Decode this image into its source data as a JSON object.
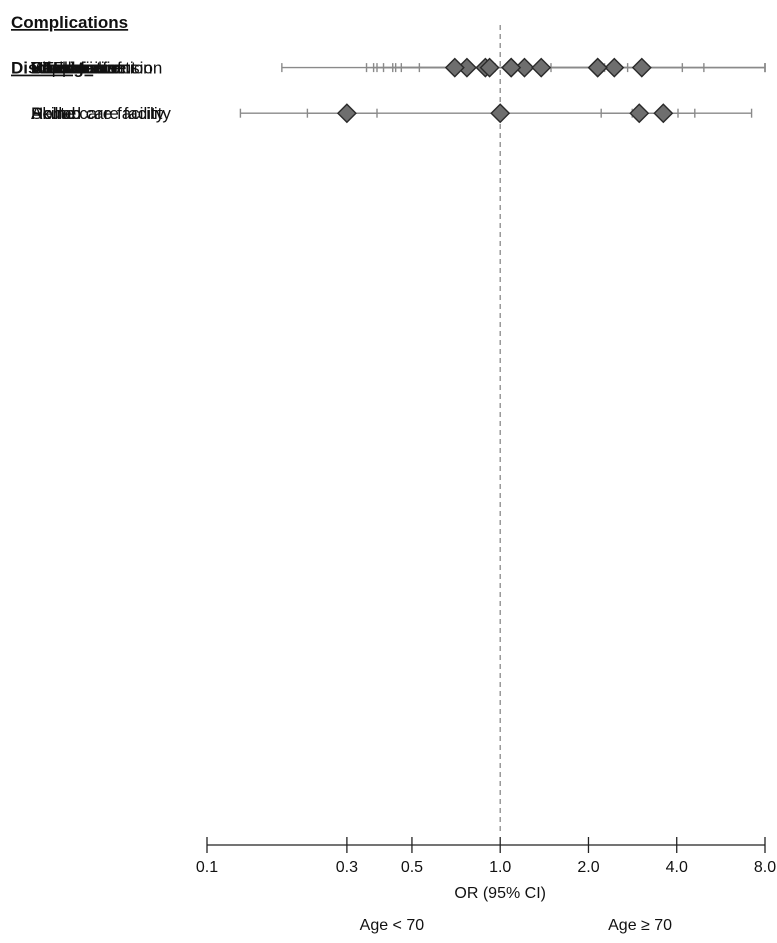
{
  "chart_data": {
    "type": "forest",
    "xscale": "log",
    "xlabel": "OR (95% CI)",
    "xlim": [
      0.1,
      8.0
    ],
    "reference_line": 1.0,
    "ticks": [
      {
        "value": 0.1,
        "label": "0.1"
      },
      {
        "value": 0.3,
        "label": "0.3"
      },
      {
        "value": 0.5,
        "label": "0.5"
      },
      {
        "value": 1.0,
        "label": "1.0"
      },
      {
        "value": 2.0,
        "label": "2.0"
      },
      {
        "value": 4.0,
        "label": "4.0"
      },
      {
        "value": 8.0,
        "label": "8.0"
      }
    ],
    "left_direction_label": "Age < 70",
    "right_direction_label": "Age ≥ 70",
    "marker_color": "#6e6e6e",
    "sections": [
      {
        "title": "Complications",
        "rows": [
          {
            "label": "Wound infection",
            "or": 0.77,
            "lo": 0.44,
            "hi": 1.38
          },
          {
            "label": "Pneumonia",
            "or": 1.09,
            "lo": 0.46,
            "hi": 2.72
          },
          {
            "label": "VTE",
            "or": 0.7,
            "lo": 0.35,
            "hi": 1.49
          },
          {
            "label": "Intubation",
            "or": 1.21,
            "lo": 0.4,
            "hi": 4.18
          },
          {
            "label": "Renal failure",
            "or": 3.04,
            "lo": 0.37,
            "hi": 8.0
          },
          {
            "label": "UTI",
            "or": 2.45,
            "lo": 1.2,
            "hi": 4.95
          },
          {
            "label": "Cardiac event",
            "or": 2.15,
            "lo": 0.43,
            "hi": 8.0
          },
          {
            "label": "Blood transfusion",
            "or": 1.09,
            "lo": 0.89,
            "hi": 1.33
          },
          {
            "label": "Stroke",
            "or": 2.15,
            "lo": 0.18,
            "hi": 8.0
          },
          {
            "label": "Sepsis",
            "or": 0.89,
            "lo": 0.38,
            "hi": 2.45
          },
          {
            "label": "Reoperation",
            "or": 0.92,
            "lo": 0.53,
            "hi": 1.43
          },
          {
            "label": "Readmission",
            "or": 1.38,
            "lo": 0.96,
            "hi": 2.27
          }
        ]
      },
      {
        "title": "Discharge",
        "rows": [
          {
            "label": "Home",
            "or": 0.3,
            "lo": 0.22,
            "hi": 0.38
          },
          {
            "label": "Rehab",
            "or": 2.98,
            "lo": 2.21,
            "hi": 4.04
          },
          {
            "label": "Acute care facility",
            "or": 1.0,
            "lo": 0.13,
            "hi": 7.2
          },
          {
            "label": "Skilled care facility",
            "or": 3.6,
            "lo": 2.82,
            "hi": 4.61
          }
        ]
      }
    ]
  }
}
